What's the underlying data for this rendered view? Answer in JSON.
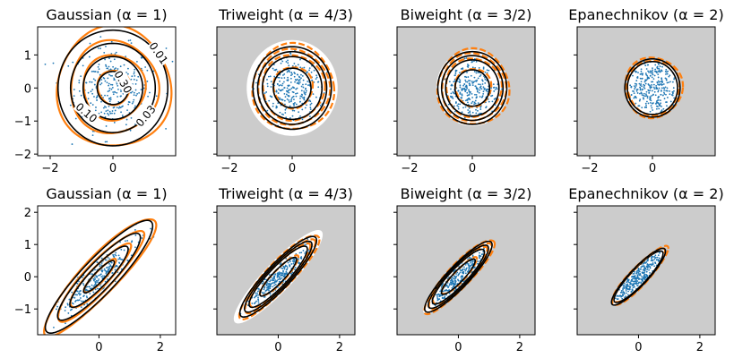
{
  "colors": {
    "points": "#1f77b4",
    "sample_contour": "#ff7f0e",
    "true_contour": "#000000",
    "panel_bg": "#cccccc",
    "support": "#ffffff"
  },
  "chart_data": [
    {
      "row": 1,
      "type": "scatter",
      "title": "Gaussian (α = 1)",
      "alpha": 1,
      "kernel": "gaussian",
      "xlim": [
        -2.4,
        2.0
      ],
      "ylim": [
        -2.05,
        1.85
      ],
      "xticks": [
        "−2",
        "0"
      ],
      "yticks": [
        "1",
        "0",
        "−1",
        "−2"
      ],
      "show_y_ticklabels": true,
      "covariance": [
        [
          1,
          0
        ],
        [
          0,
          1
        ]
      ],
      "contour_radii": [
        0.5,
        0.95,
        1.35,
        1.75
      ],
      "contour_labels": [
        {
          "text": "0.01"
        },
        {
          "text": "0.30"
        },
        {
          "text": "0.10"
        },
        {
          "text": "0.03"
        }
      ]
    },
    {
      "row": 1,
      "type": "scatter",
      "title": "Triweight (α = 4/3)",
      "alpha": "4/3",
      "kernel": "triweight",
      "xlim": [
        -2.4,
        2.0
      ],
      "ylim": [
        -2.05,
        1.85
      ],
      "xticks": [
        "−2",
        "0"
      ],
      "yticks": [],
      "show_y_ticklabels": false,
      "covariance": [
        [
          1,
          0
        ],
        [
          0,
          1
        ]
      ],
      "support_radius": 1.45,
      "contour_radii": [
        0.6,
        0.95,
        1.1,
        1.25
      ]
    },
    {
      "row": 1,
      "type": "scatter",
      "title": "Biweight (α = 3/2)",
      "alpha": "3/2",
      "kernel": "biweight",
      "xlim": [
        -2.4,
        2.0
      ],
      "ylim": [
        -2.05,
        1.85
      ],
      "xticks": [
        "−2",
        "0"
      ],
      "yticks": [],
      "show_y_ticklabels": false,
      "covariance": [
        [
          1,
          0
        ],
        [
          0,
          1
        ]
      ],
      "support_radius": 1.15,
      "contour_radii": [
        0.55,
        0.85,
        0.98,
        1.1
      ]
    },
    {
      "row": 1,
      "type": "scatter",
      "title": "Epanechnikov (α = 2)",
      "alpha": 2,
      "kernel": "epanechnikov",
      "xlim": [
        -2.4,
        2.0
      ],
      "ylim": [
        -2.05,
        1.85
      ],
      "xticks": [
        "−2",
        "0"
      ],
      "yticks": [],
      "show_y_ticklabels": false,
      "covariance": [
        [
          1,
          0
        ],
        [
          0,
          1
        ]
      ],
      "support_radius": 0.88,
      "contour_radii": [
        0.8,
        0.88
      ]
    },
    {
      "row": 2,
      "type": "scatter",
      "title": "Gaussian (α = 1)",
      "alpha": 1,
      "kernel": "gaussian",
      "xlim": [
        -2.0,
        2.5
      ],
      "ylim": [
        -1.8,
        2.2
      ],
      "xticks": [
        "0",
        "2"
      ],
      "yticks": [
        "2",
        "1",
        "0",
        "−1"
      ],
      "show_y_ticklabels": true,
      "covariance": [
        [
          1,
          0.9
        ],
        [
          0.9,
          1
        ]
      ],
      "contour_radii": [
        0.5,
        0.95,
        1.35,
        1.75
      ]
    },
    {
      "row": 2,
      "type": "scatter",
      "title": "Triweight (α = 4/3)",
      "alpha": "4/3",
      "kernel": "triweight",
      "xlim": [
        -2.0,
        2.5
      ],
      "ylim": [
        -1.8,
        2.2
      ],
      "xticks": [
        "0",
        "2"
      ],
      "yticks": [],
      "show_y_ticklabels": false,
      "covariance": [
        [
          1,
          0.9
        ],
        [
          0.9,
          1
        ]
      ],
      "support_radius": 1.45,
      "contour_radii": [
        0.6,
        0.95,
        1.1,
        1.25
      ]
    },
    {
      "row": 2,
      "type": "scatter",
      "title": "Biweight (α = 3/2)",
      "alpha": "3/2",
      "kernel": "biweight",
      "xlim": [
        -2.0,
        2.5
      ],
      "ylim": [
        -1.8,
        2.2
      ],
      "xticks": [
        "0",
        "2"
      ],
      "yticks": [],
      "show_y_ticklabels": false,
      "covariance": [
        [
          1,
          0.9
        ],
        [
          0.9,
          1
        ]
      ],
      "support_radius": 1.15,
      "contour_radii": [
        0.55,
        0.85,
        0.98,
        1.1
      ]
    },
    {
      "row": 2,
      "type": "scatter",
      "title": "Epanechnikov (α = 2)",
      "alpha": 2,
      "kernel": "epanechnikov",
      "xlim": [
        -2.0,
        2.5
      ],
      "ylim": [
        -1.8,
        2.2
      ],
      "xticks": [
        "0",
        "2"
      ],
      "yticks": [],
      "show_y_ticklabels": false,
      "covariance": [
        [
          1,
          0.9
        ],
        [
          0.9,
          1
        ]
      ],
      "support_radius": 0.88,
      "contour_radii": [
        0.8,
        0.88
      ]
    }
  ]
}
